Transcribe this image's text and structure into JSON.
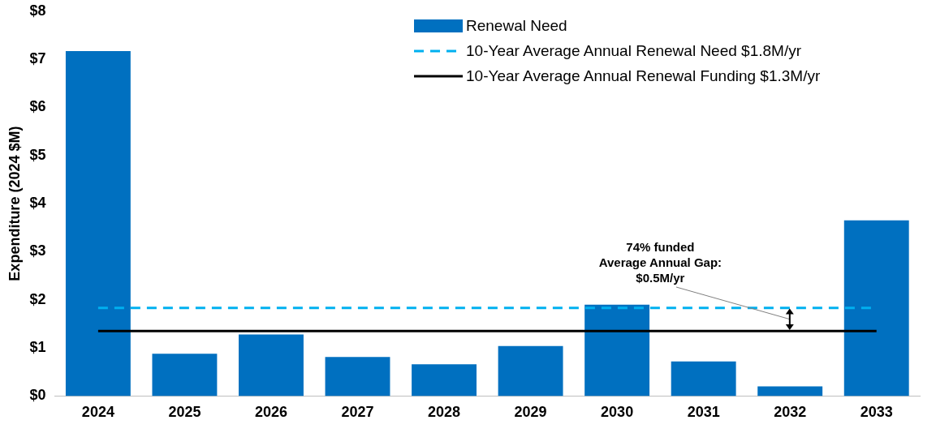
{
  "chart_data": {
    "type": "bar",
    "ylabel": "Expenditure (2024 $M)",
    "categories": [
      "2024",
      "2025",
      "2026",
      "2027",
      "2028",
      "2029",
      "2030",
      "2031",
      "2032",
      "2033"
    ],
    "series": [
      {
        "name": "Renewal Need",
        "color": "#0070c0",
        "values": [
          7.17,
          0.88,
          1.28,
          0.81,
          0.66,
          1.04,
          1.9,
          0.72,
          0.2,
          3.65
        ]
      }
    ],
    "ref_lines": [
      {
        "axis": "y",
        "value": 1.83,
        "label": "10-Year Average Annual Renewal Need $1.8M/yr",
        "color": "#00b0f0",
        "line_style": "dashed"
      },
      {
        "axis": "y",
        "value": 1.35,
        "label": "10-Year Average Annual Renewal Funding $1.3M/yr",
        "color": "#000000",
        "line_style": "solid"
      }
    ],
    "annotations": [
      "74% funded",
      "Average Annual Gap:",
      "$0.5M/yr"
    ],
    "ylim": [
      0,
      8
    ],
    "yticks": [
      {
        "value": 0,
        "label": "$0"
      },
      {
        "value": 1,
        "label": "$1"
      },
      {
        "value": 2,
        "label": "$2"
      },
      {
        "value": 3,
        "label": "$3"
      },
      {
        "value": 4,
        "label": "$4"
      },
      {
        "value": 5,
        "label": "$5"
      },
      {
        "value": 6,
        "label": "$6"
      },
      {
        "value": 7,
        "label": "$7"
      },
      {
        "value": 8,
        "label": "$8"
      }
    ],
    "grid": false,
    "legend": "top"
  }
}
